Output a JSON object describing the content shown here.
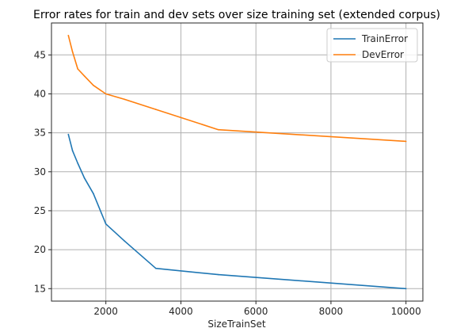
{
  "chart_data": {
    "type": "line",
    "title": "Error rates for train and dev sets over size training set (extended corpus)",
    "xlabel": "SizeTrainSet",
    "ylabel": "",
    "xlim": [
      550,
      10450
    ],
    "ylim": [
      13.4,
      49.1
    ],
    "xticks": [
      2000,
      4000,
      6000,
      8000,
      10000
    ],
    "yticks": [
      15,
      20,
      25,
      30,
      35,
      40,
      45
    ],
    "grid": true,
    "legend_position": "top-right",
    "series": [
      {
        "name": "TrainError",
        "color": "#1f77b4",
        "x": [
          1000,
          1111,
          1250,
          1429,
          1667,
          2000,
          2500,
          3333,
          5000,
          10000
        ],
        "y": [
          34.8,
          32.7,
          31.1,
          29.2,
          27.2,
          23.3,
          21.1,
          17.6,
          16.8,
          15.0
        ]
      },
      {
        "name": "DevError",
        "color": "#ff7f0e",
        "x": [
          1000,
          1111,
          1250,
          1429,
          1667,
          2000,
          2500,
          3333,
          5000,
          10000
        ],
        "y": [
          47.5,
          45.4,
          43.2,
          42.3,
          41.1,
          40.0,
          39.3,
          38.0,
          35.4,
          33.9
        ]
      }
    ]
  }
}
